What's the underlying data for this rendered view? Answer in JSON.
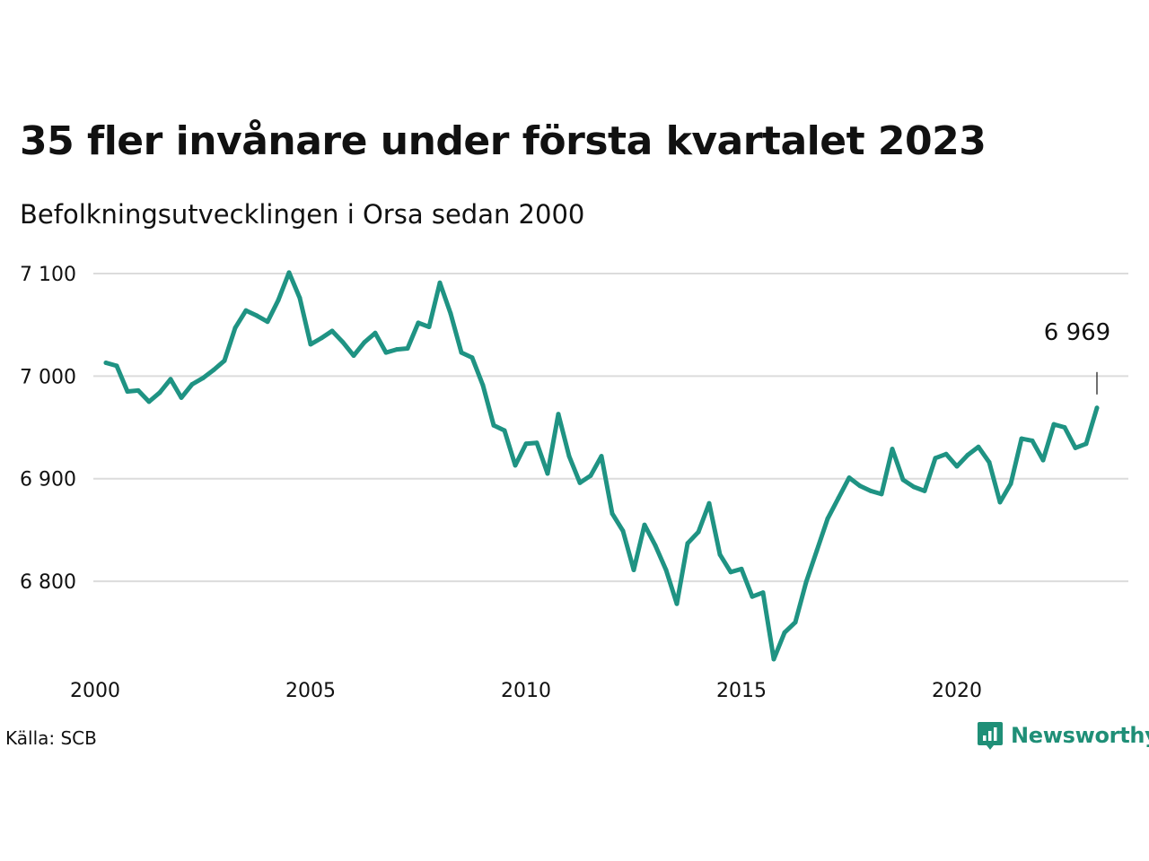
{
  "header": {
    "title": "35 fler invånare under första kvartalet 2023",
    "subtitle": "Befolkningsutvecklingen i Orsa sedan 2000"
  },
  "footer": {
    "source": "Källa: SCB",
    "brand": "Newsworthy"
  },
  "colors": {
    "line": "#1f9383",
    "grid": "#dcdcdc",
    "brand": "#1f8f77"
  },
  "chart_data": {
    "type": "line",
    "title": "35 fler invånare under första kvartalet 2023",
    "subtitle": "Befolkningsutvecklingen i Orsa sedan 2000",
    "xlabel": "",
    "ylabel": "",
    "xlim": [
      2000,
      2023.25
    ],
    "ylim": [
      6710,
      7100
    ],
    "grid": true,
    "legend": "none",
    "y_ticks": [
      {
        "value": 7100,
        "label": "7 100"
      },
      {
        "value": 7000,
        "label": "7 000"
      },
      {
        "value": 6900,
        "label": "6 900"
      },
      {
        "value": 6800,
        "label": "6 800"
      }
    ],
    "x_ticks": [
      {
        "value": 2000,
        "label": "2000"
      },
      {
        "value": 2005,
        "label": "2005"
      },
      {
        "value": 2010,
        "label": "2010"
      },
      {
        "value": 2015,
        "label": "2015"
      },
      {
        "value": 2020,
        "label": "2020"
      }
    ],
    "annotation": {
      "label": "6 969"
    },
    "series": [
      {
        "values": [
          [
            2000.25,
            7013
          ],
          [
            2000.5,
            7010
          ],
          [
            2000.75,
            6985
          ],
          [
            2001.0,
            6986
          ],
          [
            2001.25,
            6975
          ],
          [
            2001.5,
            6984
          ],
          [
            2001.75,
            6997
          ],
          [
            2002.0,
            6979
          ],
          [
            2002.25,
            6992
          ],
          [
            2002.5,
            6998
          ],
          [
            2002.75,
            7006
          ],
          [
            2003.0,
            7015
          ],
          [
            2003.25,
            7047
          ],
          [
            2003.5,
            7064
          ],
          [
            2003.75,
            7059
          ],
          [
            2004.0,
            7053
          ],
          [
            2004.25,
            7074
          ],
          [
            2004.5,
            7101
          ],
          [
            2004.75,
            7076
          ],
          [
            2005.0,
            7031
          ],
          [
            2005.25,
            7037
          ],
          [
            2005.5,
            7044
          ],
          [
            2005.75,
            7033
          ],
          [
            2006.0,
            7020
          ],
          [
            2006.25,
            7033
          ],
          [
            2006.5,
            7042
          ],
          [
            2006.75,
            7023
          ],
          [
            2007.0,
            7026
          ],
          [
            2007.25,
            7027
          ],
          [
            2007.5,
            7052
          ],
          [
            2007.75,
            7048
          ],
          [
            2008.0,
            7091
          ],
          [
            2008.25,
            7061
          ],
          [
            2008.5,
            7023
          ],
          [
            2008.75,
            7018
          ],
          [
            2009.0,
            6991
          ],
          [
            2009.25,
            6952
          ],
          [
            2009.5,
            6947
          ],
          [
            2009.75,
            6913
          ],
          [
            2010.0,
            6934
          ],
          [
            2010.25,
            6935
          ],
          [
            2010.5,
            6905
          ],
          [
            2010.75,
            6963
          ],
          [
            2011.0,
            6922
          ],
          [
            2011.25,
            6896
          ],
          [
            2011.5,
            6903
          ],
          [
            2011.75,
            6922
          ],
          [
            2012.0,
            6866
          ],
          [
            2012.25,
            6849
          ],
          [
            2012.5,
            6811
          ],
          [
            2012.75,
            6855
          ],
          [
            2013.0,
            6835
          ],
          [
            2013.25,
            6811
          ],
          [
            2013.5,
            6778
          ],
          [
            2013.75,
            6837
          ],
          [
            2014.0,
            6848
          ],
          [
            2014.25,
            6876
          ],
          [
            2014.5,
            6826
          ],
          [
            2014.75,
            6809
          ],
          [
            2015.0,
            6812
          ],
          [
            2015.25,
            6785
          ],
          [
            2015.5,
            6789
          ],
          [
            2015.75,
            6724
          ],
          [
            2016.0,
            6750
          ],
          [
            2016.25,
            6760
          ],
          [
            2016.5,
            6799
          ],
          [
            2016.75,
            6830
          ],
          [
            2017.0,
            6861
          ],
          [
            2017.25,
            6881
          ],
          [
            2017.5,
            6901
          ],
          [
            2017.75,
            6893
          ],
          [
            2018.0,
            6888
          ],
          [
            2018.25,
            6885
          ],
          [
            2018.5,
            6929
          ],
          [
            2018.75,
            6899
          ],
          [
            2019.0,
            6892
          ],
          [
            2019.25,
            6888
          ],
          [
            2019.5,
            6920
          ],
          [
            2019.75,
            6924
          ],
          [
            2020.0,
            6912
          ],
          [
            2020.25,
            6923
          ],
          [
            2020.5,
            6931
          ],
          [
            2020.75,
            6916
          ],
          [
            2021.0,
            6877
          ],
          [
            2021.25,
            6895
          ],
          [
            2021.5,
            6939
          ],
          [
            2021.75,
            6937
          ],
          [
            2022.0,
            6918
          ],
          [
            2022.25,
            6953
          ],
          [
            2022.5,
            6950
          ],
          [
            2022.75,
            6930
          ],
          [
            2023.0,
            6934
          ],
          [
            2023.25,
            6969
          ]
        ]
      }
    ]
  }
}
